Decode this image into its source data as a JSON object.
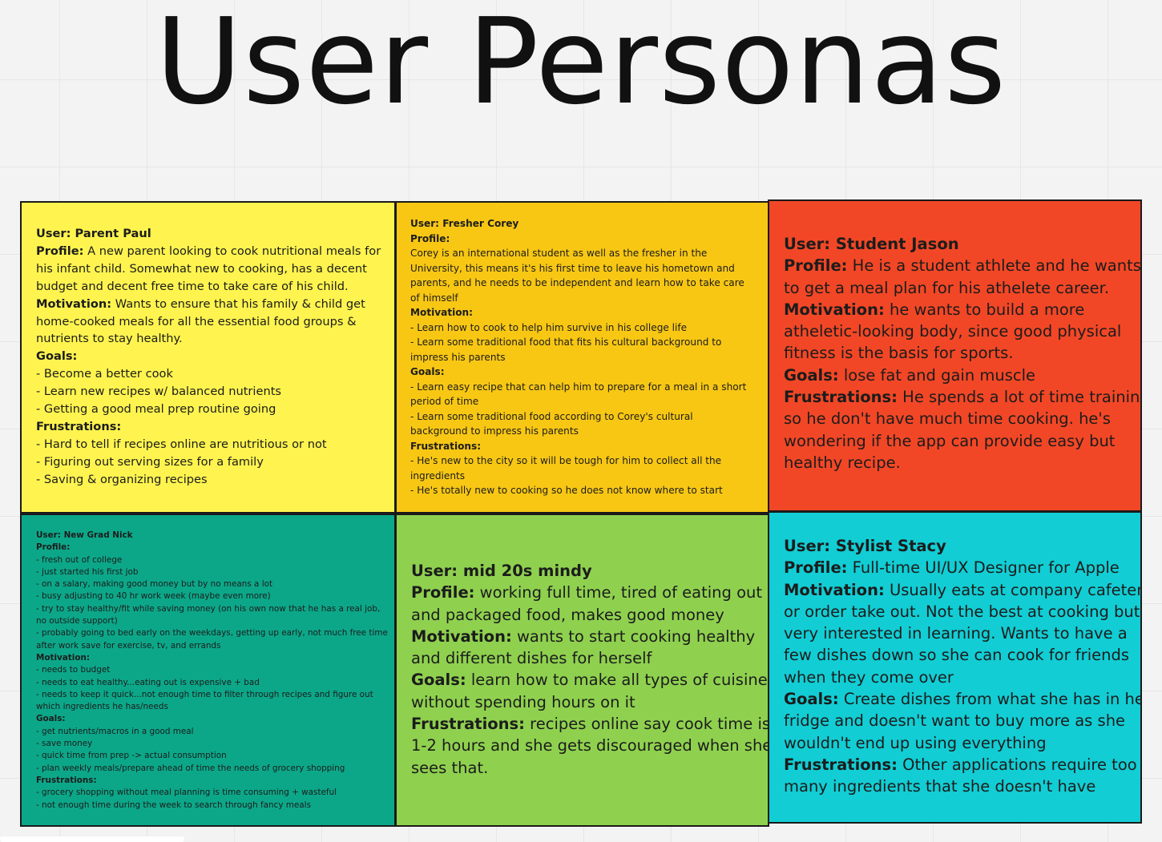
{
  "title": "User Personas",
  "personas": [
    {
      "id": "paul",
      "color": "#fff44f",
      "lines": [
        {
          "b": "User: Parent Paul",
          "t": ""
        },
        {
          "b": "Profile:",
          "t": " A new parent looking to cook nutritional meals for"
        },
        {
          "b": "",
          "t": "his infant child. Somewhat new to cooking, has a decent"
        },
        {
          "b": "",
          "t": "budget and decent free time to take care of his child."
        },
        {
          "b": "Motivation:",
          "t": " Wants to ensure that his family & child get"
        },
        {
          "b": "",
          "t": "home-cooked meals for all the essential food groups &"
        },
        {
          "b": "",
          "t": "nutrients to stay healthy."
        },
        {
          "b": "Goals:",
          "t": ""
        },
        {
          "b": "",
          "t": "- Become a better cook"
        },
        {
          "b": "",
          "t": "- Learn new recipes w/ balanced nutrients"
        },
        {
          "b": "",
          "t": "- Getting a good meal prep routine going"
        },
        {
          "b": "Frustrations:",
          "t": ""
        },
        {
          "b": "",
          "t": "- Hard to tell if recipes online are nutritious or not"
        },
        {
          "b": "",
          "t": "- Figuring out serving sizes for a family"
        },
        {
          "b": "",
          "t": "- Saving & organizing recipes"
        }
      ]
    },
    {
      "id": "corey",
      "color": "#f8c714",
      "lines": [
        {
          "b": "User: Fresher Corey",
          "t": ""
        },
        {
          "b": "Profile:",
          "t": ""
        },
        {
          "b": "",
          "t": "Corey is an international student as well as the fresher in the"
        },
        {
          "b": "",
          "t": "University, this means it's his first time to leave his hometown and"
        },
        {
          "b": "",
          "t": "parents, and he needs to be independent and learn how to take care"
        },
        {
          "b": "",
          "t": "of himself"
        },
        {
          "b": "Motivation:",
          "t": ""
        },
        {
          "b": "",
          "t": "- Learn how to cook to help him survive in his college life"
        },
        {
          "b": "",
          "t": "- Learn some traditional food that fits his cultural background to"
        },
        {
          "b": "",
          "t": "impress his parents"
        },
        {
          "b": "Goals:",
          "t": ""
        },
        {
          "b": "",
          "t": "- Learn easy recipe that can help him to prepare for a meal in a short"
        },
        {
          "b": "",
          "t": "period of time"
        },
        {
          "b": "",
          "t": "- Learn some traditional food according to Corey's cultural"
        },
        {
          "b": "",
          "t": "background to impress his parents"
        },
        {
          "b": "Frustrations:",
          "t": ""
        },
        {
          "b": "",
          "t": "- He's new to the city so it will be tough for him to collect all the"
        },
        {
          "b": "",
          "t": "ingredients"
        },
        {
          "b": "",
          "t": "- He's totally new to cooking so he does not know where to start"
        }
      ]
    },
    {
      "id": "jason",
      "color": "#f24726",
      "lines": [
        {
          "b": "User: Student Jason",
          "t": ""
        },
        {
          "b": "Profile:",
          "t": " He is a student athlete and he wants"
        },
        {
          "b": "",
          "t": "to get a meal plan for his athelete career."
        },
        {
          "b": "Motivation:",
          "t": " he wants to build a more"
        },
        {
          "b": "",
          "t": "atheletic-looking body, since good physical"
        },
        {
          "b": "",
          "t": "fitness is the basis for sports."
        },
        {
          "b": "Goals:",
          "t": " lose fat and gain muscle"
        },
        {
          "b": "Frustrations:",
          "t": " He spends a lot of time training,"
        },
        {
          "b": "",
          "t": "so he don't have much time cooking. he's"
        },
        {
          "b": "",
          "t": "wondering if the app can provide easy but"
        },
        {
          "b": "",
          "t": "healthy recipe."
        }
      ]
    },
    {
      "id": "nick",
      "color": "#0ca789",
      "lines": [
        {
          "b": "User: New Grad Nick",
          "t": ""
        },
        {
          "b": "Profile:",
          "t": ""
        },
        {
          "b": "",
          "t": "- fresh out of college"
        },
        {
          "b": "",
          "t": "- just started his first job"
        },
        {
          "b": "",
          "t": "- on a salary, making good money but by no means a lot"
        },
        {
          "b": "",
          "t": "- busy adjusting to 40 hr work week (maybe even more)"
        },
        {
          "b": "",
          "t": "- try to stay healthy/fit while saving money (on his own now that he has a real job,"
        },
        {
          "b": "",
          "t": "no outside support)"
        },
        {
          "b": "",
          "t": "- probably going to bed early on the weekdays, getting up early, not much free time"
        },
        {
          "b": "",
          "t": "after work save for exercise, tv, and errands"
        },
        {
          "b": "Motivation:",
          "t": ""
        },
        {
          "b": "",
          "t": "- needs to budget"
        },
        {
          "b": "",
          "t": "- needs to eat healthy...eating out is expensive + bad"
        },
        {
          "b": "",
          "t": "- needs to keep it quick...not enough time to filter through recipes and figure out"
        },
        {
          "b": "",
          "t": "which ingredients he has/needs"
        },
        {
          "b": "Goals:",
          "t": ""
        },
        {
          "b": "",
          "t": "- get nutrients/macros in a good meal"
        },
        {
          "b": "",
          "t": "- save money"
        },
        {
          "b": "",
          "t": "- quick time from prep -> actual consumption"
        },
        {
          "b": "",
          "t": "- plan weekly meals/prepare ahead of time the needs of grocery shopping"
        },
        {
          "b": "Frustrations:",
          "t": ""
        },
        {
          "b": "",
          "t": "- grocery shopping without meal planning is time consuming + wasteful"
        },
        {
          "b": "",
          "t": "- not enough time during the week to search through fancy meals"
        }
      ]
    },
    {
      "id": "mindy",
      "color": "#8fd14f",
      "lines": [
        {
          "b": "User: mid 20s mindy",
          "t": ""
        },
        {
          "b": "Profile:",
          "t": " working full time, tired of eating out"
        },
        {
          "b": "",
          "t": "and packaged food, makes good money"
        },
        {
          "b": "Motivation:",
          "t": " wants to start cooking healthy"
        },
        {
          "b": "",
          "t": "and different dishes for herself"
        },
        {
          "b": "Goals:",
          "t": " learn how to make all types of cuisines"
        },
        {
          "b": "",
          "t": "without spending hours on it"
        },
        {
          "b": "Frustrations:",
          "t": " recipes online say cook time is"
        },
        {
          "b": "",
          "t": "1-2 hours and she gets discouraged when she"
        },
        {
          "b": "",
          "t": "sees that."
        }
      ]
    },
    {
      "id": "stacy",
      "color": "#12cdd4",
      "lines": [
        {
          "b": "User: Stylist Stacy",
          "t": ""
        },
        {
          "b": "Profile:",
          "t": " Full-time UI/UX Designer for Apple"
        },
        {
          "b": "Motivation:",
          "t": " Usually eats at company cafeteria"
        },
        {
          "b": "",
          "t": "or order take out. Not the best at cooking but"
        },
        {
          "b": "",
          "t": "very interested in learning. Wants to have a"
        },
        {
          "b": "",
          "t": "few dishes down so she can cook for friends"
        },
        {
          "b": "",
          "t": "when they come over"
        },
        {
          "b": "Goals:",
          "t": " Create dishes from what she has in her"
        },
        {
          "b": "",
          "t": "fridge and doesn't want to buy more as she"
        },
        {
          "b": "",
          "t": "wouldn't end up using everything"
        },
        {
          "b": "Frustrations:",
          "t": " Other applications require too"
        },
        {
          "b": "",
          "t": "many ingredients that she doesn't have"
        }
      ]
    }
  ]
}
